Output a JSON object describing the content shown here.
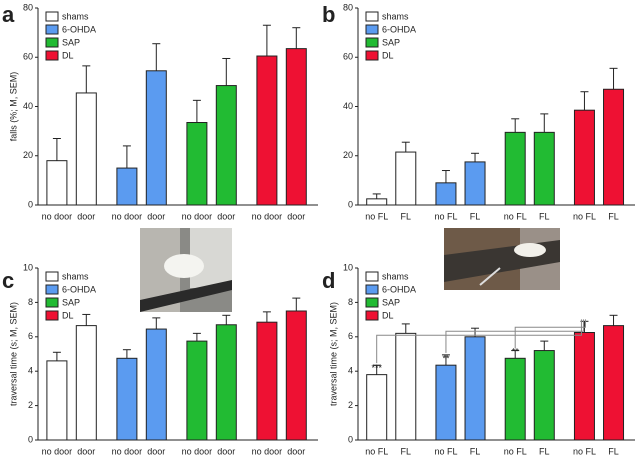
{
  "chart_data": [
    {
      "type": "bar",
      "panel": "a",
      "y_label": "falls (%; M, SEM)",
      "categories": [
        "no door",
        "door"
      ],
      "ylim": [
        0,
        80
      ],
      "yticks": [
        0,
        20,
        40,
        60,
        80
      ],
      "series": [
        {
          "name": "shams",
          "color": "#ffffff",
          "values": [
            18,
            45.5
          ],
          "errors": [
            9,
            11
          ]
        },
        {
          "name": "6-OHDA",
          "color": "#5b9bf0",
          "values": [
            15,
            54.5
          ],
          "errors": [
            9,
            11
          ]
        },
        {
          "name": "SAP",
          "color": "#22bb33",
          "values": [
            33.5,
            48.5
          ],
          "errors": [
            9,
            11
          ]
        },
        {
          "name": "DL",
          "color": "#ee1133",
          "values": [
            60.5,
            63.5
          ],
          "errors": [
            12.5,
            8.5
          ]
        }
      ]
    },
    {
      "type": "bar",
      "panel": "b",
      "y_label": "",
      "categories": [
        "no FL",
        "FL"
      ],
      "ylim": [
        0,
        80
      ],
      "yticks": [
        0,
        20,
        40,
        60,
        80
      ],
      "series": [
        {
          "name": "shams",
          "color": "#ffffff",
          "values": [
            2.5,
            21.5
          ],
          "errors": [
            2,
            4
          ]
        },
        {
          "name": "6-OHDA",
          "color": "#5b9bf0",
          "values": [
            9,
            17.5
          ],
          "errors": [
            5,
            3.5
          ]
        },
        {
          "name": "SAP",
          "color": "#22bb33",
          "values": [
            29.5,
            29.5
          ],
          "errors": [
            5.5,
            7.5
          ]
        },
        {
          "name": "DL",
          "color": "#ee1133",
          "values": [
            38.5,
            47
          ],
          "errors": [
            7.5,
            8.5
          ]
        }
      ]
    },
    {
      "type": "bar",
      "panel": "c",
      "y_label": "traversal time (s; M, SEM)",
      "categories": [
        "no door",
        "door"
      ],
      "ylim": [
        0,
        10
      ],
      "yticks": [
        0,
        2,
        4,
        6,
        8,
        10
      ],
      "series": [
        {
          "name": "shams",
          "color": "#ffffff",
          "values": [
            4.6,
            6.65
          ],
          "errors": [
            0.5,
            0.65
          ]
        },
        {
          "name": "6-OHDA",
          "color": "#5b9bf0",
          "values": [
            4.75,
            6.45
          ],
          "errors": [
            0.5,
            0.65
          ]
        },
        {
          "name": "SAP",
          "color": "#22bb33",
          "values": [
            5.75,
            6.7
          ],
          "errors": [
            0.45,
            0.55
          ]
        },
        {
          "name": "DL",
          "color": "#ee1133",
          "values": [
            6.85,
            7.5
          ],
          "errors": [
            0.6,
            0.75
          ]
        }
      ]
    },
    {
      "type": "bar",
      "panel": "d",
      "y_label": "traversal time (s; M, SEM)",
      "categories": [
        "no FL",
        "FL"
      ],
      "ylim": [
        0,
        10
      ],
      "yticks": [
        0,
        2,
        4,
        6,
        8,
        10
      ],
      "series": [
        {
          "name": "shams",
          "color": "#ffffff",
          "values": [
            3.8,
            6.2
          ],
          "errors": [
            0.55,
            0.55
          ],
          "significance": [
            "***",
            null
          ]
        },
        {
          "name": "6-OHDA",
          "color": "#5b9bf0",
          "values": [
            4.35,
            6.0
          ],
          "errors": [
            0.6,
            0.5
          ],
          "significance": [
            "**",
            null
          ]
        },
        {
          "name": "SAP",
          "color": "#22bb33",
          "values": [
            4.75,
            5.2
          ],
          "errors": [
            0.45,
            0.55
          ],
          "significance": [
            "**",
            null
          ]
        },
        {
          "name": "DL",
          "color": "#ee1133",
          "values": [
            6.25,
            6.65
          ],
          "errors": [
            0.65,
            0.6
          ]
        }
      ]
    }
  ]
}
